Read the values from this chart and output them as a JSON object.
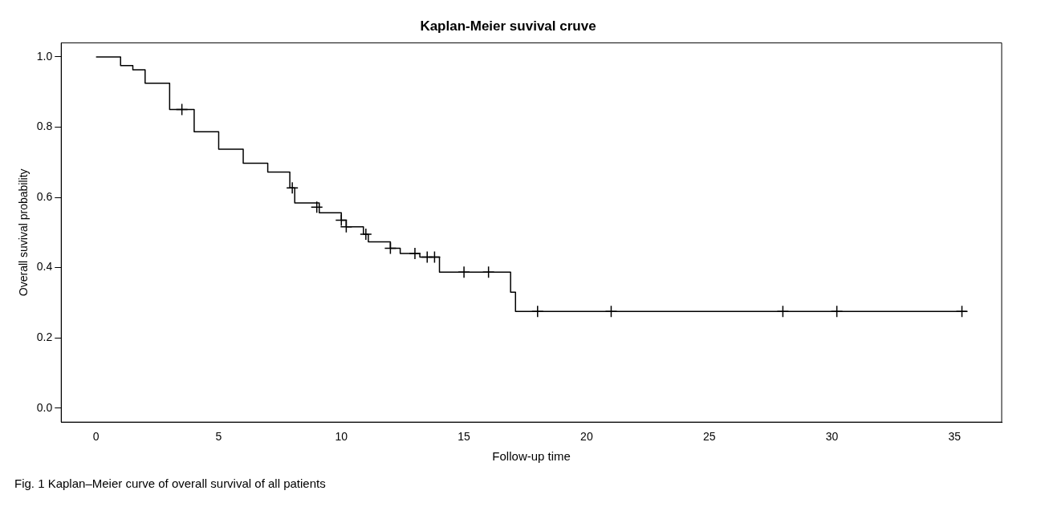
{
  "chart_data": {
    "type": "step",
    "title": "Kaplan-Meier suvival cruve",
    "xlabel": "Follow-up time",
    "ylabel": "Overall suvival probability",
    "annotations": [
      "Fig. 1 Kaplan–Meier curve of overall survival of all patients"
    ],
    "series": [
      {
        "type": "step",
        "color": "#000000",
        "x": [
          0,
          1,
          1.5,
          2,
          3,
          4,
          5,
          6,
          7,
          7.9,
          8.1,
          9.1,
          10,
          10.2,
          10.9,
          11.1,
          12,
          12.4,
          13.2,
          14,
          16.9,
          17.1,
          35.5
        ],
        "values": [
          1,
          0.975,
          0.963,
          0.925,
          0.85,
          0.787,
          0.737,
          0.697,
          0.672,
          0.627,
          0.584,
          0.556,
          0.535,
          0.516,
          0.495,
          0.473,
          0.455,
          0.44,
          0.43,
          0.387,
          0.33,
          0.275,
          0.275
        ]
      },
      {
        "type": "scatter",
        "color": "#000000",
        "marker": "cross",
        "x": [
          3.5,
          8,
          9,
          10,
          10.2,
          11,
          12,
          13,
          13.5,
          13.8,
          15,
          16,
          18,
          21,
          28,
          30.2,
          35.3
        ],
        "values": [
          0.85,
          0.627,
          0.572,
          0.535,
          0.516,
          0.495,
          0.455,
          0.44,
          0.43,
          0.43,
          0.387,
          0.387,
          0.275,
          0.275,
          0.275,
          0.275,
          0.275
        ]
      }
    ],
    "xlim": [
      -1.42,
      36.92
    ],
    "xticks": [
      0,
      5,
      10,
      15,
      20,
      25,
      30,
      35
    ],
    "ylim": [
      -0.04,
      1.04
    ],
    "yticks": [
      {
        "value": 0,
        "label": "0.0"
      },
      {
        "value": 0.2,
        "label": "0.2"
      },
      {
        "value": 0.4,
        "label": "0.4"
      },
      {
        "value": 0.6,
        "label": "0.6"
      },
      {
        "value": 0.8,
        "label": "0.8"
      },
      {
        "value": 1,
        "label": "1.0"
      }
    ],
    "grid": false,
    "legend": false
  }
}
